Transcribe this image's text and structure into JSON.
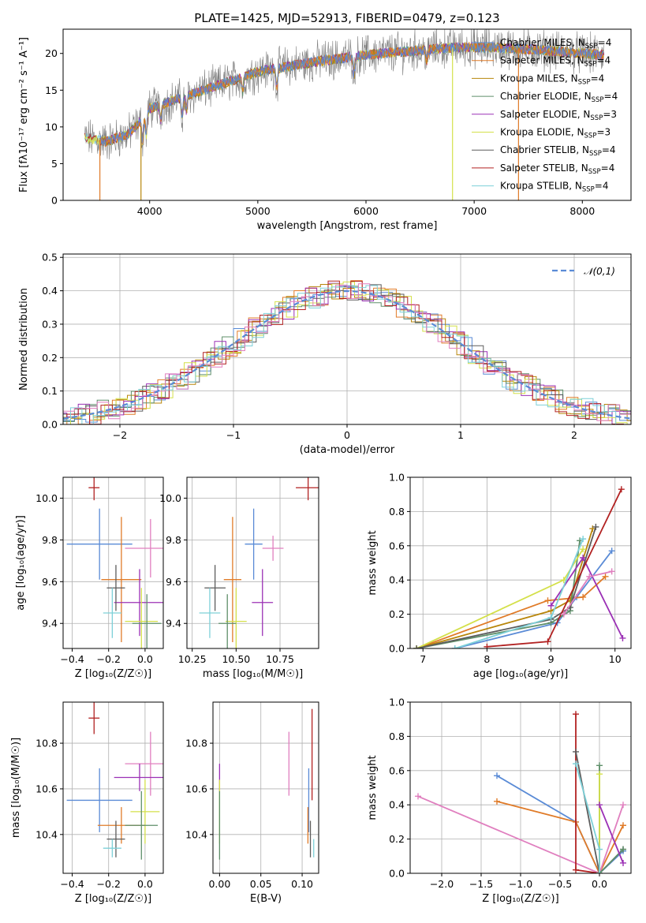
{
  "figure": {
    "title": "PLATE=1425, MJD=52913, FIBERID=0479, z=0.123"
  },
  "colors": {
    "Chabrier MILES": "#5a8bd6",
    "Salpeter MILES": "#e07b28",
    "Kroupa MILES": "#b8860b",
    "Chabrier ELODIE": "#5f8f6a",
    "Salpeter ELODIE": "#9b30b5",
    "Kroupa ELODIE": "#d4e04a",
    "Chabrier STELIB": "#5c5c5c",
    "Salpeter STELIB": "#b22222",
    "Kroupa STELIB": "#7dd0d8",
    "pink": "#e07fbf",
    "normal": "#5a8bd6"
  },
  "chart_data": [
    {
      "id": "spectrum",
      "type": "line",
      "xlabel": "wavelength [Angstrom, rest frame]",
      "ylabel": "Flux [fλ10⁻¹⁷ erg cm⁻² s⁻¹ A⁻¹]",
      "xlim": [
        3200,
        8450
      ],
      "ylim": [
        0,
        23.3
      ],
      "xticks": [
        4000,
        5000,
        6000,
        7000,
        8000
      ],
      "yticks": [
        0,
        5,
        10,
        15,
        20
      ],
      "legend_position": "upper-right",
      "legend": [
        "Chabrier MILES, N_SSP=4",
        "Salpeter MILES, N_SSP=4",
        "Kroupa MILES, N_SSP=4",
        "Chabrier ELODIE, N_SSP=4",
        "Salpeter ELODIE, N_SSP=3",
        "Kroupa ELODIE, N_SSP=3",
        "Chabrier STELIB, N_SSP=4",
        "Salpeter STELIB, N_SSP=4",
        "Kroupa STELIB, N_SSP=4"
      ],
      "continuum": [
        [
          3400,
          8.5
        ],
        [
          3600,
          8.0
        ],
        [
          3800,
          9.0
        ],
        [
          3900,
          10.5
        ],
        [
          4000,
          12.5
        ],
        [
          4200,
          13.5
        ],
        [
          4500,
          15.0
        ],
        [
          4800,
          16.5
        ],
        [
          5000,
          17.5
        ],
        [
          5300,
          18.3
        ],
        [
          5600,
          19.0
        ],
        [
          6000,
          19.8
        ],
        [
          6400,
          20.3
        ],
        [
          6800,
          20.8
        ],
        [
          7200,
          20.8
        ],
        [
          7600,
          20.5
        ],
        [
          8000,
          20.0
        ],
        [
          8200,
          19.8
        ]
      ]
    },
    {
      "id": "residuals",
      "type": "line",
      "xlabel": "(data-model)/error",
      "ylabel": "Normed distribution",
      "xlim": [
        -2.5,
        2.5
      ],
      "ylim": [
        0,
        0.51
      ],
      "xticks": [
        -2,
        -1,
        0,
        1,
        2
      ],
      "yticks": [
        0.0,
        0.1,
        0.2,
        0.3,
        0.4,
        0.5
      ],
      "grid": true,
      "legend_position": "upper-right",
      "legend": [
        "𝒩(0,1)"
      ]
    },
    {
      "id": "age_vs_Z",
      "type": "scatter",
      "xlabel": "Z [log₁₀(Z/Z☉)]",
      "ylabel": "age  [log₁₀(age/yr)]",
      "xlim": [
        -0.45,
        0.1
      ],
      "ylim": [
        9.28,
        10.1
      ],
      "xticks": [
        -0.4,
        -0.2,
        0.0
      ],
      "yticks": [
        9.4,
        9.6,
        9.8,
        10.0
      ],
      "grid": true,
      "points": [
        {
          "c": "Chabrier MILES",
          "x": -0.25,
          "xe": 0.18,
          "y": 9.78,
          "ye": 0.17
        },
        {
          "c": "Salpeter MILES",
          "x": -0.13,
          "xe": 0.11,
          "y": 9.61,
          "ye": 0.3
        },
        {
          "c": "pink",
          "x": 0.03,
          "xe": 0.14,
          "y": 9.76,
          "ye": 0.14
        },
        {
          "c": "Salpeter ELODIE",
          "x": -0.03,
          "xe": 0.14,
          "y": 9.5,
          "ye": 0.16
        },
        {
          "c": "Kroupa ELODIE",
          "x": -0.02,
          "xe": 0.09,
          "y": 9.41,
          "ye": 0.16
        },
        {
          "c": "Chabrier STELIB",
          "x": -0.16,
          "xe": 0.05,
          "y": 9.57,
          "ye": 0.11
        },
        {
          "c": "Kroupa STELIB",
          "x": -0.18,
          "xe": 0.05,
          "y": 9.45,
          "ye": 0.12
        },
        {
          "c": "Chabrier ELODIE",
          "x": 0.01,
          "xe": 0.08,
          "y": 9.4,
          "ye": 0.14
        },
        {
          "c": "Salpeter STELIB",
          "x": -0.28,
          "xe": 0.03,
          "y": 10.05,
          "ye": 0.06
        }
      ]
    },
    {
      "id": "age_vs_mass",
      "type": "scatter",
      "xlabel": "mass [log₁₀(M/M☉)]",
      "ylabel": "",
      "xlim": [
        10.22,
        10.97
      ],
      "ylim": [
        9.28,
        10.1
      ],
      "xticks": [
        10.25,
        10.5,
        10.75
      ],
      "yticks": [
        9.4,
        9.6,
        9.8,
        10.0
      ],
      "grid": true,
      "points": [
        {
          "c": "Chabrier MILES",
          "x": 10.6,
          "xe": 0.05,
          "y": 9.78,
          "ye": 0.17
        },
        {
          "c": "Salpeter MILES",
          "x": 10.48,
          "xe": 0.05,
          "y": 9.61,
          "ye": 0.3
        },
        {
          "c": "pink",
          "x": 10.71,
          "xe": 0.06,
          "y": 9.76,
          "ye": 0.06
        },
        {
          "c": "Salpeter ELODIE",
          "x": 10.65,
          "xe": 0.06,
          "y": 9.5,
          "ye": 0.16
        },
        {
          "c": "Kroupa ELODIE",
          "x": 10.5,
          "xe": 0.06,
          "y": 9.41,
          "ye": 0.16
        },
        {
          "c": "Chabrier STELIB",
          "x": 10.38,
          "xe": 0.06,
          "y": 9.57,
          "ye": 0.11
        },
        {
          "c": "Kroupa STELIB",
          "x": 10.35,
          "xe": 0.06,
          "y": 9.45,
          "ye": 0.12
        },
        {
          "c": "Chabrier ELODIE",
          "x": 10.45,
          "xe": 0.05,
          "y": 9.4,
          "ye": 0.14
        },
        {
          "c": "Salpeter STELIB",
          "x": 10.91,
          "xe": 0.07,
          "y": 10.05,
          "ye": 0.06
        }
      ]
    },
    {
      "id": "weight_vs_age",
      "type": "line",
      "xlabel": "age  [log₁₀(age/yr)]",
      "ylabel": "mass weight",
      "xlim": [
        6.8,
        10.25
      ],
      "ylim": [
        0,
        1.0
      ],
      "xticks": [
        7,
        8,
        9,
        10
      ],
      "yticks": [
        0.0,
        0.2,
        0.4,
        0.6,
        0.8,
        1.0
      ],
      "grid": true,
      "series": [
        {
          "c": "Chabrier MILES",
          "points": [
            [
              7.5,
              0.0
            ],
            [
              9.1,
              0.15
            ],
            [
              9.4,
              0.3
            ],
            [
              9.95,
              0.57
            ]
          ]
        },
        {
          "c": "Salpeter MILES",
          "points": [
            [
              6.9,
              0.0
            ],
            [
              8.95,
              0.28
            ],
            [
              9.5,
              0.3
            ],
            [
              9.85,
              0.42
            ]
          ]
        },
        {
          "c": "Kroupa MILES",
          "points": [
            [
              6.9,
              0.0
            ],
            [
              9.0,
              0.22
            ],
            [
              9.3,
              0.28
            ],
            [
              9.65,
              0.7
            ]
          ]
        },
        {
          "c": "Chabrier ELODIE",
          "points": [
            [
              6.9,
              0.0
            ],
            [
              9.0,
              0.15
            ],
            [
              9.3,
              0.22
            ],
            [
              9.45,
              0.63
            ]
          ]
        },
        {
          "c": "Salpeter ELODIE",
          "points": [
            [
              9.0,
              0.25
            ],
            [
              9.5,
              0.53
            ],
            [
              10.12,
              0.06
            ]
          ]
        },
        {
          "c": "Kroupa ELODIE",
          "points": [
            [
              6.9,
              0.0
            ],
            [
              9.2,
              0.4
            ],
            [
              9.5,
              0.58
            ]
          ]
        },
        {
          "c": "Chabrier STELIB",
          "points": [
            [
              6.9,
              0.0
            ],
            [
              9.0,
              0.17
            ],
            [
              9.3,
              0.24
            ],
            [
              9.7,
              0.71
            ]
          ]
        },
        {
          "c": "Salpeter STELIB",
          "points": [
            [
              8.0,
              0.01
            ],
            [
              8.95,
              0.04
            ],
            [
              10.1,
              0.93
            ]
          ]
        },
        {
          "c": "Kroupa STELIB",
          "points": [
            [
              7.5,
              0.0
            ],
            [
              9.0,
              0.18
            ],
            [
              9.5,
              0.64
            ]
          ]
        },
        {
          "c": "pink",
          "points": [
            [
              9.2,
              0.2
            ],
            [
              9.6,
              0.42
            ],
            [
              9.95,
              0.45
            ]
          ]
        }
      ]
    },
    {
      "id": "mass_vs_Z",
      "type": "scatter",
      "xlabel": "Z [log₁₀(Z/Z☉)]",
      "ylabel": "mass [log₁₀(M/M☉)]",
      "xlim": [
        -0.45,
        0.1
      ],
      "ylim": [
        10.23,
        10.98
      ],
      "xticks": [
        -0.4,
        -0.2,
        0.0
      ],
      "yticks": [
        10.4,
        10.6,
        10.8
      ],
      "grid": true,
      "points": [
        {
          "c": "Chabrier MILES",
          "x": -0.25,
          "xe": 0.18,
          "y": 10.55,
          "ye": 0.14
        },
        {
          "c": "Salpeter MILES",
          "x": -0.13,
          "xe": 0.13,
          "y": 10.44,
          "ye": 0.08
        },
        {
          "c": "pink",
          "x": 0.03,
          "xe": 0.14,
          "y": 10.71,
          "ye": 0.14
        },
        {
          "c": "Salpeter ELODIE",
          "x": -0.03,
          "xe": 0.14,
          "y": 10.65,
          "ye": 0.06
        },
        {
          "c": "Kroupa ELODIE",
          "x": 0.0,
          "xe": 0.08,
          "y": 10.5,
          "ye": 0.14
        },
        {
          "c": "Chabrier STELIB",
          "x": -0.16,
          "xe": 0.05,
          "y": 10.38,
          "ye": 0.08
        },
        {
          "c": "Kroupa STELIB",
          "x": -0.18,
          "xe": 0.05,
          "y": 10.34,
          "ye": 0.04
        },
        {
          "c": "Chabrier ELODIE",
          "x": -0.02,
          "xe": 0.09,
          "y": 10.44,
          "ye": 0.15
        },
        {
          "c": "Salpeter STELIB",
          "x": -0.28,
          "xe": 0.03,
          "y": 10.91,
          "ye": 0.07
        }
      ]
    },
    {
      "id": "mass_vs_ebv",
      "type": "scatter",
      "xlabel": "E(B-V)",
      "ylabel": "",
      "xlim": [
        -0.008,
        0.12
      ],
      "ylim": [
        10.23,
        10.98
      ],
      "xticks": [
        0.0,
        0.05,
        0.1
      ],
      "yticks": [
        10.4,
        10.6,
        10.8
      ],
      "grid": true,
      "points": [
        {
          "c": "Chabrier MILES",
          "x": 0.108,
          "y": 10.55,
          "ye": 0.14
        },
        {
          "c": "Salpeter MILES",
          "x": 0.107,
          "y": 10.44,
          "ye": 0.08
        },
        {
          "c": "pink",
          "x": 0.084,
          "y": 10.71,
          "ye": 0.14
        },
        {
          "c": "Salpeter ELODIE",
          "x": 0.0,
          "y": 10.65,
          "ye": 0.06
        },
        {
          "c": "Kroupa ELODIE",
          "x": 0.0,
          "y": 10.5,
          "ye": 0.14
        },
        {
          "c": "Chabrier STELIB",
          "x": 0.11,
          "y": 10.38,
          "ye": 0.08
        },
        {
          "c": "Kroupa STELIB",
          "x": 0.114,
          "y": 10.34,
          "ye": 0.04
        },
        {
          "c": "Chabrier ELODIE",
          "x": 0.0,
          "y": 10.44,
          "ye": 0.15
        },
        {
          "c": "Salpeter STELIB",
          "x": 0.112,
          "y": 10.75,
          "ye": 0.2
        }
      ]
    },
    {
      "id": "weight_vs_Z",
      "type": "line",
      "xlabel": "Z [log₁₀(Z/Z☉)]",
      "ylabel": "mass weight",
      "xlim": [
        -2.4,
        0.4
      ],
      "ylim": [
        0,
        1.0
      ],
      "xticks": [
        -2.0,
        -1.5,
        -1.0,
        -0.5,
        0.0
      ],
      "yticks": [
        0.0,
        0.2,
        0.4,
        0.6,
        0.8,
        1.0
      ],
      "grid": true,
      "series": [
        {
          "c": "Chabrier MILES",
          "points": [
            [
              -1.3,
              0.57
            ],
            [
              -0.3,
              0.3
            ],
            [
              0.0,
              0.0
            ],
            [
              0.3,
              0.13
            ]
          ]
        },
        {
          "c": "Salpeter MILES",
          "points": [
            [
              -1.3,
              0.42
            ],
            [
              -0.3,
              0.3
            ],
            [
              0.0,
              0.0
            ],
            [
              0.3,
              0.28
            ]
          ]
        },
        {
          "c": "pink",
          "points": [
            [
              -2.3,
              0.45
            ],
            [
              0.0,
              0.0
            ],
            [
              0.3,
              0.4
            ]
          ]
        },
        {
          "c": "Salpeter STELIB",
          "points": [
            [
              -0.3,
              0.93
            ],
            [
              -0.3,
              0.02
            ],
            [
              0.0,
              0.0
            ]
          ]
        },
        {
          "c": "Chabrier STELIB",
          "points": [
            [
              -0.3,
              0.71
            ],
            [
              0.0,
              0.0
            ],
            [
              0.3,
              0.14
            ]
          ]
        },
        {
          "c": "Chabrier ELODIE",
          "points": [
            [
              0.0,
              0.63
            ],
            [
              0.0,
              0.0
            ],
            [
              0.3,
              0.14
            ]
          ]
        },
        {
          "c": "Kroupa ELODIE",
          "points": [
            [
              0.0,
              0.58
            ],
            [
              0.0,
              0.0
            ]
          ]
        },
        {
          "c": "Kroupa STELIB",
          "points": [
            [
              -0.3,
              0.64
            ],
            [
              0.0,
              0.14
            ],
            [
              0.0,
              0.0
            ]
          ]
        },
        {
          "c": "Salpeter ELODIE",
          "points": [
            [
              0.0,
              0.4
            ],
            [
              0.3,
              0.06
            ]
          ]
        }
      ]
    }
  ]
}
